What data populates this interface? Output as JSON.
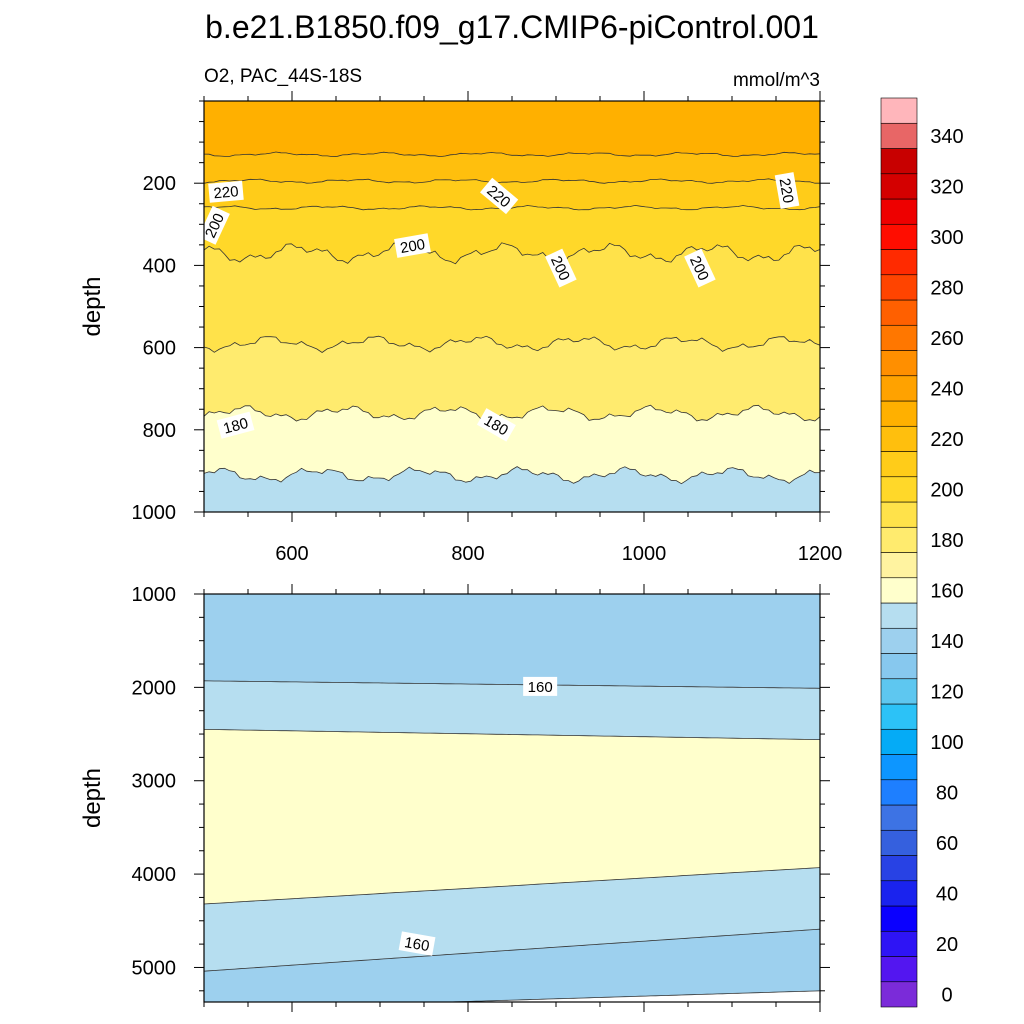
{
  "chart_data": {
    "type": "heatmap",
    "title": "b.e21.B1850.f09_g17.CMIP6-piControl.001",
    "variable_label": "O2, PAC_44S-18S",
    "units_label": "mmol/m^3",
    "colorbar": {
      "levels": [
        0,
        10,
        20,
        30,
        40,
        50,
        60,
        70,
        80,
        90,
        100,
        110,
        120,
        130,
        140,
        150,
        160,
        170,
        180,
        190,
        200,
        210,
        220,
        230,
        240,
        250,
        260,
        270,
        280,
        290,
        300,
        310,
        320,
        330,
        340,
        350
      ],
      "tick_labels": [
        "0",
        "20",
        "40",
        "60",
        "80",
        "100",
        "120",
        "140",
        "160",
        "180",
        "200",
        "220",
        "240",
        "260",
        "280",
        "300",
        "320",
        "340"
      ],
      "colors": [
        "#7b2bd9",
        "#5316f0",
        "#2e14f5",
        "#0a00ff",
        "#1a23ee",
        "#2842e4",
        "#3560de",
        "#3d73e4",
        "#1e7fff",
        "#0d96ff",
        "#05abf6",
        "#2cc2f7",
        "#5ec7f0",
        "#87c8ee",
        "#9dd0ee",
        "#b6def0",
        "#ffffcc",
        "#fff3a0",
        "#ffeb6e",
        "#ffe24a",
        "#ffd829",
        "#ffcc19",
        "#ffbf0d",
        "#ffb000",
        "#ffa200",
        "#ff8f00",
        "#ff7700",
        "#ff6000",
        "#ff4400",
        "#ff2a00",
        "#ff0d00",
        "#ee0000",
        "#d40000",
        "#c80000",
        "#e86666",
        "#ffb6bb"
      ]
    },
    "panels": [
      {
        "x_range": [
          500,
          1200
        ],
        "y_range": [
          0,
          1000
        ],
        "y_reversed": true,
        "xlabel": "",
        "ylabel": "depth",
        "x_ticks": [
          600,
          800,
          1000,
          1200
        ],
        "x_tick_labels": [
          "600",
          "800",
          "1000",
          "1200"
        ],
        "y_ticks": [
          200,
          400,
          600,
          800,
          1000
        ],
        "y_tick_labels": [
          "200",
          "400",
          "600",
          "800",
          "1000"
        ],
        "bands": [
          {
            "from": 0,
            "to": 130,
            "color": "#ffb000"
          },
          {
            "from": 130,
            "to": 195,
            "color": "#ffbf0d"
          },
          {
            "from": 195,
            "to": 260,
            "color": "#ffcc19"
          },
          {
            "from": 260,
            "to": 370,
            "color": "#ffd829"
          },
          {
            "from": 370,
            "to": 590,
            "color": "#ffe24a"
          },
          {
            "from": 590,
            "to": 760,
            "color": "#ffeb6e"
          },
          {
            "from": 760,
            "to": 910,
            "color": "#ffffcc"
          },
          {
            "from": 910,
            "to": 1000,
            "color": "#b6def0"
          }
        ],
        "contours": [
          {
            "value": 225,
            "depth": 130
          },
          {
            "value": 220,
            "depth": 195
          },
          {
            "value": 210,
            "depth": 260
          },
          {
            "value": 200,
            "depth": 370
          },
          {
            "value": 190,
            "depth": 590
          },
          {
            "value": 180,
            "depth": 760
          },
          {
            "value": 170,
            "depth": 910
          }
        ],
        "contour_labels": [
          {
            "text": "220",
            "x": 525,
            "y": 222,
            "angle": -5
          },
          {
            "text": "220",
            "x": 835,
            "y": 232,
            "angle": 40
          },
          {
            "text": "220",
            "x": 1162,
            "y": 218,
            "angle": 80
          },
          {
            "text": "200",
            "x": 512,
            "y": 303,
            "angle": -65
          },
          {
            "text": "200",
            "x": 737,
            "y": 353,
            "angle": -10
          },
          {
            "text": "200",
            "x": 905,
            "y": 407,
            "angle": 65
          },
          {
            "text": "200",
            "x": 1063,
            "y": 407,
            "angle": 65
          },
          {
            "text": "180",
            "x": 536,
            "y": 790,
            "angle": -15
          },
          {
            "text": "180",
            "x": 832,
            "y": 789,
            "angle": 30
          }
        ]
      },
      {
        "x_range": [
          500,
          1200
        ],
        "y_range": [
          1000,
          5370
        ],
        "y_reversed": true,
        "xlabel": "",
        "ylabel": "depth",
        "x_ticks": [
          600,
          800,
          1000,
          1200
        ],
        "x_tick_labels": [],
        "y_ticks": [
          1000,
          2000,
          3000,
          4000,
          5000
        ],
        "y_tick_labels": [
          "1000",
          "2000",
          "3000",
          "4000",
          "5000"
        ],
        "bands": [
          {
            "from": 1000,
            "to": 1930,
            "color": "#9dd0ee"
          },
          {
            "from": 1930,
            "to": 2450,
            "color": "#b6def0"
          },
          {
            "from": 2450,
            "to": 4200,
            "color": "#ffffcc"
          },
          {
            "from": 4200,
            "to": 4800,
            "color": "#b6def0"
          },
          {
            "from": 4800,
            "to": 5370,
            "color": "#9dd0ee"
          }
        ],
        "contours": [
          {
            "value": 160,
            "depth_left": 1930,
            "depth_right": 2010
          },
          {
            "value": 170,
            "depth_left": 2450,
            "depth_right": 2560
          },
          {
            "value": 170,
            "depth_left": 4320,
            "depth_right": 3930
          },
          {
            "value": 160,
            "depth_left": 5040,
            "depth_right": 4590
          },
          {
            "value": 150,
            "depth_left": 5450,
            "depth_right": 5250
          }
        ],
        "contour_labels": [
          {
            "text": "160",
            "x": 882,
            "y": 1995,
            "angle": 0
          },
          {
            "text": "160",
            "x": 742,
            "y": 4750,
            "angle": 10
          }
        ]
      }
    ]
  }
}
